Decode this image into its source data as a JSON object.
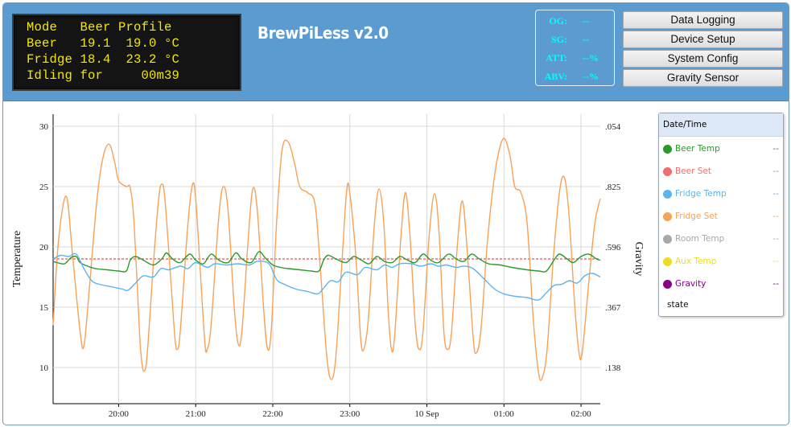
{
  "lcd": {
    "lines": [
      "Mode   Beer Profile",
      "Beer   19.1  19.0 °C",
      "Fridge 18.4  23.2 °C",
      "Idling for     00m39"
    ]
  },
  "app_title": "BrewPiLess v2.0",
  "gravity_box": {
    "rows": [
      {
        "label": "OG:",
        "value": "--"
      },
      {
        "label": "SG:",
        "value": "--"
      },
      {
        "label": "ATT:",
        "value": "--%"
      },
      {
        "label": "ABV:",
        "value": "--%"
      }
    ]
  },
  "nav": {
    "buttons": [
      "Data Logging",
      "Device Setup",
      "System Config",
      "Gravity Sensor"
    ]
  },
  "legend": {
    "header": "Date/Time",
    "items": [
      {
        "label": "Beer Temp",
        "value": "--",
        "color": "#2a9a2a"
      },
      {
        "label": "Beer Set",
        "value": "--",
        "color": "#ef6f6f"
      },
      {
        "label": "Fridge Temp",
        "value": "--",
        "color": "#5ab4f0"
      },
      {
        "label": "Fridge Set",
        "value": "--",
        "color": "#f7a256"
      },
      {
        "label": "Room Temp",
        "value": "--",
        "color": "#a8a8a8"
      },
      {
        "label": "Aux Temp",
        "value": "--",
        "color": "#f0dc1e"
      },
      {
        "label": "Gravity",
        "value": "--",
        "color": "#880088"
      }
    ],
    "state_label": "state"
  },
  "chart_data": {
    "type": "line",
    "ylabel": "Temperature",
    "y2label": "Gravity",
    "ylim": [
      7.0,
      31.0
    ],
    "yticks": [
      "30",
      "25",
      "20",
      "15",
      "10"
    ],
    "y2ticks": [
      ".054",
      ".825",
      ".596",
      ".367",
      ".138"
    ],
    "xtick_labels": [
      "20:00",
      "21:00",
      "22:00",
      "23:00",
      "10 Sep",
      "01:00",
      "02:00"
    ],
    "x_range_hours": [
      19.15,
      26.25
    ],
    "xtick_hours": [
      20.0,
      21.0,
      22.0,
      23.0,
      24.0,
      25.0,
      26.0
    ],
    "grid": true,
    "legend_placement": "right",
    "series": [
      {
        "name": "Beer Set",
        "color": "#ef6f6f",
        "dashed": true,
        "points": [
          [
            19.15,
            19.0
          ],
          [
            26.25,
            19.0
          ]
        ]
      },
      {
        "name": "Fridge Set",
        "color": "#f7a256",
        "points": [
          [
            19.15,
            13.5
          ],
          [
            19.22,
            20.5
          ],
          [
            19.32,
            24.2
          ],
          [
            19.4,
            19.5
          ],
          [
            19.5,
            13.0
          ],
          [
            19.55,
            11.8
          ],
          [
            19.62,
            16.5
          ],
          [
            19.72,
            24.0
          ],
          [
            19.8,
            27.5
          ],
          [
            19.88,
            28.5
          ],
          [
            19.95,
            27.0
          ],
          [
            20.0,
            25.5
          ],
          [
            20.1,
            25.0
          ],
          [
            20.15,
            24.9
          ],
          [
            20.2,
            22.0
          ],
          [
            20.27,
            13.0
          ],
          [
            20.3,
            10.5
          ],
          [
            20.33,
            9.7
          ],
          [
            20.37,
            11.0
          ],
          [
            20.45,
            18.5
          ],
          [
            20.52,
            24.0
          ],
          [
            20.56,
            25.2
          ],
          [
            20.6,
            24.0
          ],
          [
            20.68,
            17.0
          ],
          [
            20.73,
            12.5
          ],
          [
            20.76,
            11.5
          ],
          [
            20.8,
            13.0
          ],
          [
            20.9,
            22.0
          ],
          [
            20.96,
            25.2
          ],
          [
            21.0,
            24.0
          ],
          [
            21.06,
            18.0
          ],
          [
            21.12,
            12.0
          ],
          [
            21.15,
            11.5
          ],
          [
            21.2,
            13.5
          ],
          [
            21.3,
            22.5
          ],
          [
            21.36,
            25.0
          ],
          [
            21.42,
            23.0
          ],
          [
            21.5,
            15.0
          ],
          [
            21.55,
            12.0
          ],
          [
            21.6,
            13.0
          ],
          [
            21.68,
            20.5
          ],
          [
            21.74,
            24.8
          ],
          [
            21.8,
            23.0
          ],
          [
            21.88,
            15.0
          ],
          [
            21.93,
            11.6
          ],
          [
            21.98,
            13.0
          ],
          [
            22.05,
            22.0
          ],
          [
            22.12,
            28.0
          ],
          [
            22.2,
            28.7
          ],
          [
            22.28,
            27.0
          ],
          [
            22.35,
            25.0
          ],
          [
            22.45,
            24.5
          ],
          [
            22.55,
            23.5
          ],
          [
            22.62,
            18.0
          ],
          [
            22.7,
            11.0
          ],
          [
            22.76,
            9.0
          ],
          [
            22.82,
            11.0
          ],
          [
            22.9,
            19.0
          ],
          [
            22.96,
            24.7
          ],
          [
            23.0,
            24.5
          ],
          [
            23.08,
            19.0
          ],
          [
            23.14,
            12.5
          ],
          [
            23.18,
            11.5
          ],
          [
            23.24,
            14.0
          ],
          [
            23.32,
            22.0
          ],
          [
            23.38,
            24.8
          ],
          [
            23.44,
            22.0
          ],
          [
            23.5,
            14.5
          ],
          [
            23.54,
            11.5
          ],
          [
            23.58,
            12.5
          ],
          [
            23.66,
            20.5
          ],
          [
            23.72,
            24.5
          ],
          [
            23.78,
            21.0
          ],
          [
            23.85,
            13.5
          ],
          [
            23.9,
            11.5
          ],
          [
            23.95,
            13.0
          ],
          [
            24.03,
            21.0
          ],
          [
            24.1,
            24.4
          ],
          [
            24.16,
            21.0
          ],
          [
            24.22,
            13.0
          ],
          [
            24.27,
            11.5
          ],
          [
            24.32,
            13.0
          ],
          [
            24.4,
            20.5
          ],
          [
            24.46,
            23.8
          ],
          [
            24.52,
            20.0
          ],
          [
            24.6,
            12.5
          ],
          [
            24.64,
            11.2
          ],
          [
            24.7,
            13.0
          ],
          [
            24.78,
            20.0
          ],
          [
            24.85,
            24.5
          ],
          [
            24.92,
            27.5
          ],
          [
            25.0,
            29.0
          ],
          [
            25.08,
            27.5
          ],
          [
            25.14,
            25.0
          ],
          [
            25.22,
            24.5
          ],
          [
            25.3,
            22.0
          ],
          [
            25.38,
            14.0
          ],
          [
            25.45,
            9.5
          ],
          [
            25.5,
            9.2
          ],
          [
            25.56,
            11.5
          ],
          [
            25.64,
            19.0
          ],
          [
            25.72,
            24.5
          ],
          [
            25.78,
            25.8
          ],
          [
            25.84,
            23.0
          ],
          [
            25.92,
            15.0
          ],
          [
            25.98,
            11.0
          ],
          [
            26.02,
            11.5
          ],
          [
            26.1,
            17.0
          ],
          [
            26.18,
            22.0
          ],
          [
            26.25,
            24.0
          ]
        ]
      },
      {
        "name": "Beer Temp",
        "color": "#2a9a2a",
        "points": [
          [
            19.15,
            18.8
          ],
          [
            19.2,
            18.7
          ],
          [
            19.3,
            18.6
          ],
          [
            19.38,
            19.1
          ],
          [
            19.45,
            19.2
          ],
          [
            19.5,
            18.7
          ],
          [
            19.6,
            18.4
          ],
          [
            19.7,
            18.2
          ],
          [
            19.85,
            18.1
          ],
          [
            20.0,
            18.0
          ],
          [
            20.1,
            18.0
          ],
          [
            20.15,
            18.9
          ],
          [
            20.22,
            19.2
          ],
          [
            20.32,
            18.9
          ],
          [
            20.45,
            18.5
          ],
          [
            20.56,
            19.0
          ],
          [
            20.62,
            19.5
          ],
          [
            20.7,
            19.0
          ],
          [
            20.8,
            18.7
          ],
          [
            20.92,
            19.4
          ],
          [
            21.0,
            18.9
          ],
          [
            21.1,
            18.6
          ],
          [
            21.2,
            19.4
          ],
          [
            21.3,
            18.9
          ],
          [
            21.42,
            18.7
          ],
          [
            21.52,
            19.5
          ],
          [
            21.6,
            19.0
          ],
          [
            21.72,
            18.7
          ],
          [
            21.82,
            19.6
          ],
          [
            21.9,
            19.1
          ],
          [
            22.0,
            18.5
          ],
          [
            22.1,
            18.3
          ],
          [
            22.2,
            18.2
          ],
          [
            22.35,
            18.1
          ],
          [
            22.5,
            18.0
          ],
          [
            22.6,
            18.0
          ],
          [
            22.66,
            18.9
          ],
          [
            22.72,
            19.3
          ],
          [
            22.82,
            19.0
          ],
          [
            22.95,
            18.7
          ],
          [
            23.05,
            19.2
          ],
          [
            23.15,
            18.9
          ],
          [
            23.25,
            18.6
          ],
          [
            23.35,
            19.2
          ],
          [
            23.45,
            18.8
          ],
          [
            23.55,
            18.7
          ],
          [
            23.65,
            19.2
          ],
          [
            23.75,
            18.9
          ],
          [
            23.85,
            18.7
          ],
          [
            23.95,
            19.4
          ],
          [
            24.05,
            18.9
          ],
          [
            24.15,
            18.7
          ],
          [
            24.28,
            19.4
          ],
          [
            24.38,
            19.0
          ],
          [
            24.48,
            18.8
          ],
          [
            24.58,
            19.4
          ],
          [
            24.68,
            19.0
          ],
          [
            24.8,
            18.6
          ],
          [
            24.95,
            18.5
          ],
          [
            25.1,
            18.3
          ],
          [
            25.3,
            18.1
          ],
          [
            25.45,
            18.0
          ],
          [
            25.55,
            18.0
          ],
          [
            25.65,
            18.9
          ],
          [
            25.72,
            19.4
          ],
          [
            25.82,
            19.0
          ],
          [
            25.9,
            18.7
          ],
          [
            26.0,
            19.2
          ],
          [
            26.1,
            19.4
          ],
          [
            26.2,
            19.0
          ],
          [
            26.25,
            18.9
          ]
        ]
      },
      {
        "name": "Fridge Temp",
        "color": "#5ab4f0",
        "points": [
          [
            19.15,
            19.0
          ],
          [
            19.25,
            19.3
          ],
          [
            19.35,
            19.2
          ],
          [
            19.45,
            19.4
          ],
          [
            19.55,
            18.2
          ],
          [
            19.65,
            17.2
          ],
          [
            19.75,
            16.9
          ],
          [
            19.9,
            16.7
          ],
          [
            20.05,
            16.5
          ],
          [
            20.12,
            16.4
          ],
          [
            20.22,
            17.0
          ],
          [
            20.32,
            17.6
          ],
          [
            20.45,
            17.5
          ],
          [
            20.55,
            18.2
          ],
          [
            20.65,
            18.1
          ],
          [
            20.8,
            18.4
          ],
          [
            20.9,
            18.2
          ],
          [
            21.0,
            18.7
          ],
          [
            21.15,
            18.3
          ],
          [
            21.25,
            18.6
          ],
          [
            21.4,
            18.5
          ],
          [
            21.55,
            18.6
          ],
          [
            21.7,
            18.5
          ],
          [
            21.8,
            18.8
          ],
          [
            21.95,
            18.6
          ],
          [
            22.05,
            17.3
          ],
          [
            22.15,
            16.9
          ],
          [
            22.3,
            16.5
          ],
          [
            22.45,
            16.3
          ],
          [
            22.58,
            16.1
          ],
          [
            22.65,
            16.5
          ],
          [
            22.75,
            17.2
          ],
          [
            22.85,
            17.1
          ],
          [
            22.95,
            17.9
          ],
          [
            23.1,
            17.7
          ],
          [
            23.2,
            18.3
          ],
          [
            23.35,
            18.1
          ],
          [
            23.45,
            18.5
          ],
          [
            23.55,
            18.3
          ],
          [
            23.65,
            18.6
          ],
          [
            23.8,
            18.6
          ],
          [
            23.92,
            18.4
          ],
          [
            24.05,
            18.6
          ],
          [
            24.15,
            18.4
          ],
          [
            24.25,
            18.5
          ],
          [
            24.38,
            18.3
          ],
          [
            24.48,
            18.4
          ],
          [
            24.6,
            18.2
          ],
          [
            24.75,
            17.3
          ],
          [
            24.88,
            16.5
          ],
          [
            25.0,
            16.1
          ],
          [
            25.15,
            15.9
          ],
          [
            25.3,
            15.8
          ],
          [
            25.45,
            15.6
          ],
          [
            25.55,
            16.2
          ],
          [
            25.65,
            16.8
          ],
          [
            25.75,
            16.9
          ],
          [
            25.85,
            17.2
          ],
          [
            25.95,
            17.0
          ],
          [
            26.05,
            17.6
          ],
          [
            26.15,
            17.8
          ],
          [
            26.25,
            17.5
          ]
        ]
      }
    ]
  }
}
